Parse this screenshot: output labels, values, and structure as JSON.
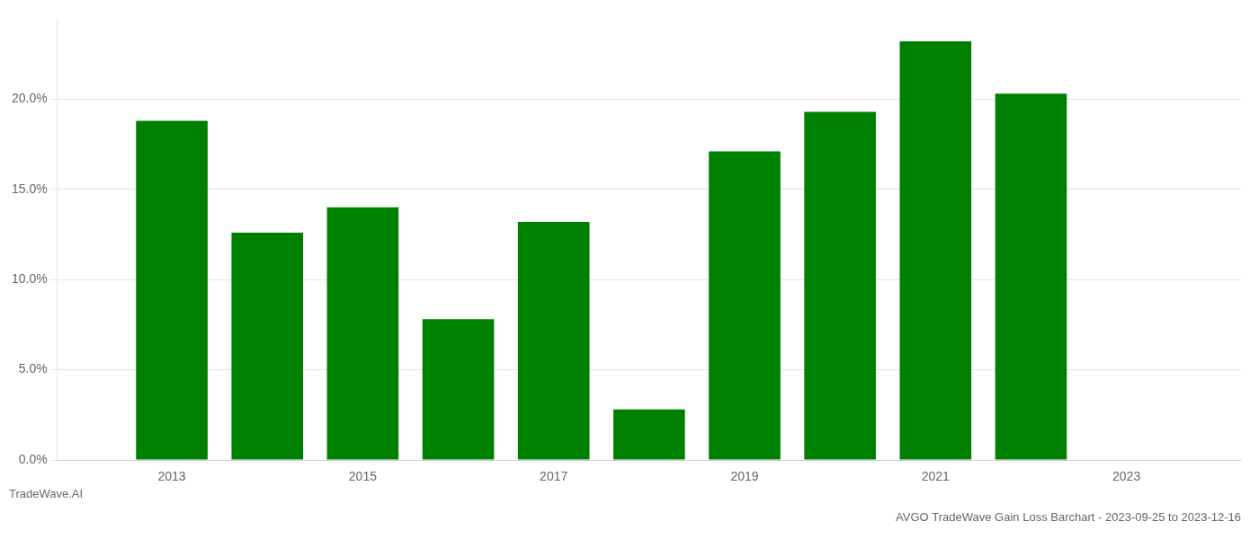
{
  "chart_data": {
    "type": "bar",
    "title": "AVGO TradeWave Gain Loss Barchart - 2023-09-25 to 2023-12-16",
    "annotations": [
      "TradeWave.AI"
    ],
    "x": [
      2013,
      2014,
      2015,
      2016,
      2017,
      2018,
      2019,
      2020,
      2021,
      2022
    ],
    "values": [
      0.188,
      0.126,
      0.14,
      0.078,
      0.132,
      0.028,
      0.171,
      0.193,
      0.232,
      0.203
    ],
    "color": "#008000",
    "xlim": [
      2011.8,
      2024.2
    ],
    "xticks": [
      2013,
      2015,
      2017,
      2019,
      2021,
      2023
    ],
    "ylim": [
      0,
      0.245
    ],
    "yticks": [
      {
        "value": 0.0,
        "label": "0.0%"
      },
      {
        "value": 0.05,
        "label": "5.0%"
      },
      {
        "value": 0.1,
        "label": "10.0%"
      },
      {
        "value": 0.15,
        "label": "15.0%"
      },
      {
        "value": 0.2,
        "label": "20.0%"
      }
    ],
    "grid": true
  }
}
